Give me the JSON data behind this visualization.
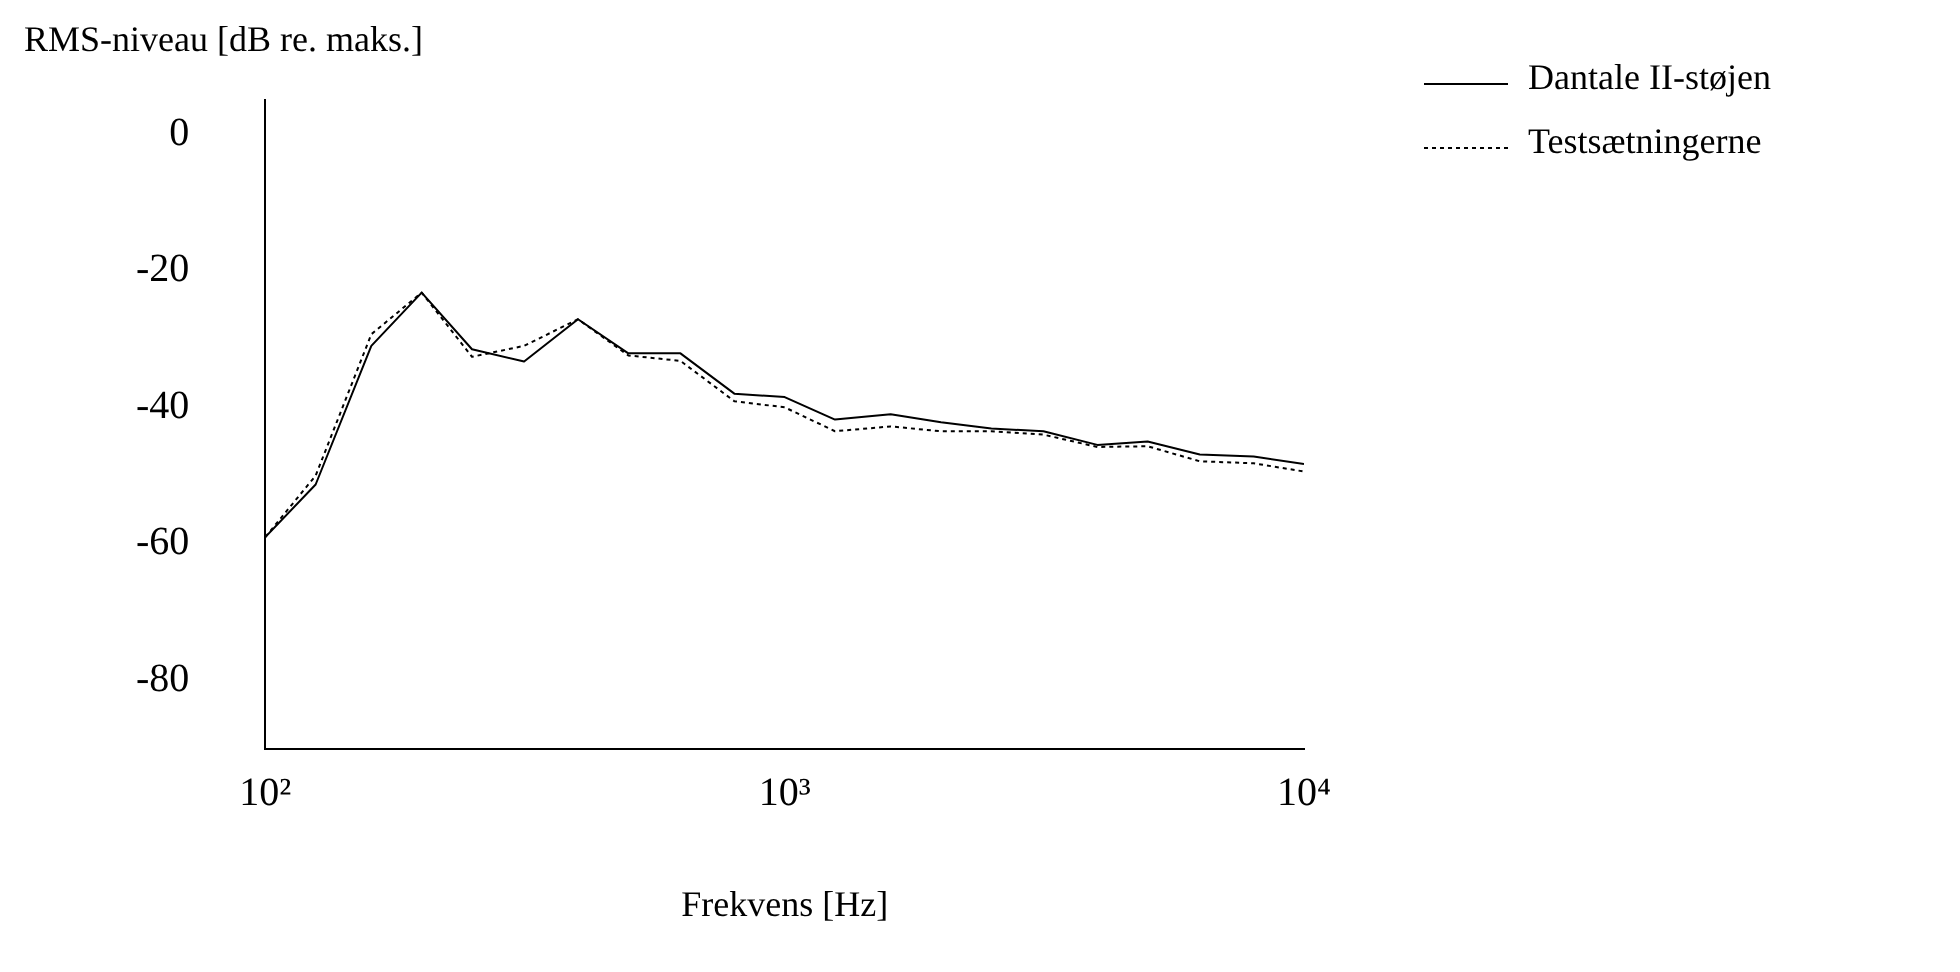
{
  "chart_data": {
    "type": "line",
    "xlabel": "Frekvens [Hz]",
    "ylabel": "RMS-niveau [dB re. maks.]",
    "x": [
      100,
      125,
      160,
      200,
      250,
      315,
      400,
      500,
      630,
      800,
      1000,
      1250,
      1600,
      2000,
      2500,
      3150,
      4000,
      5000,
      6300,
      8000,
      10000
    ],
    "series": [
      {
        "name": "Dantale II-støjen",
        "color": "#000000",
        "line_style": "solid",
        "values": [
          -59,
          -51.3,
          -31,
          -23.2,
          -31.5,
          -33.3,
          -27.1,
          -32.1,
          -32.1,
          -38,
          -38.5,
          -41.8,
          -41,
          -42.2,
          -43.1,
          -43.5,
          -45.5,
          -45,
          -46.9,
          -47.2,
          -48.3
        ]
      },
      {
        "name": "Testsætningerne",
        "color": "#000000",
        "line_style": "dotted",
        "values": [
          -59,
          -50,
          -29.3,
          -23.2,
          -32.6,
          -31,
          -27.1,
          -32.4,
          -33.2,
          -39.1,
          -40,
          -43.5,
          -42.8,
          -43.5,
          -43.5,
          -44,
          -45.8,
          -45.7,
          -47.9,
          -48.2,
          -49.4
        ]
      }
    ],
    "log": "x",
    "xlim": [
      100,
      10000
    ],
    "xticks": [
      {
        "value": 100,
        "label": "10²"
      },
      {
        "value": 1000,
        "label": "10³"
      },
      {
        "value": 10000,
        "label": "10⁴"
      }
    ],
    "ylim": [
      -90,
      5
    ],
    "yticks": [
      0,
      -20,
      -40,
      -60,
      -80
    ],
    "grid": false,
    "legend": "top right",
    "marker": "none"
  }
}
